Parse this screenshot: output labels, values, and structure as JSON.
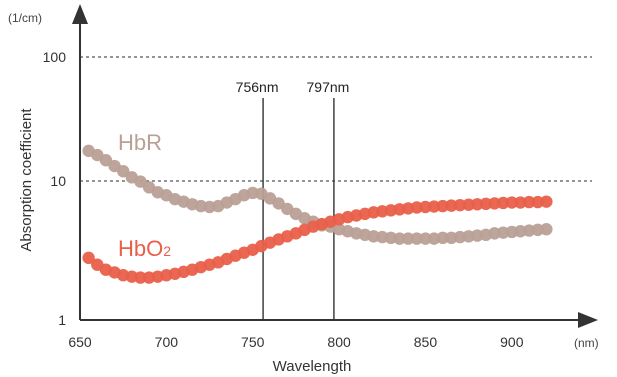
{
  "chart_data": {
    "type": "scatter",
    "scale_y": "log",
    "xlim": [
      650,
      925
    ],
    "ylim": [
      1,
      200
    ],
    "x_ticks": [
      650,
      700,
      750,
      800,
      850,
      900
    ],
    "y_ticks": [
      1,
      10,
      100
    ],
    "y_ticks_labels": [
      "1",
      "10",
      "100"
    ],
    "x_ticks_labels": [
      "650",
      "700",
      "750",
      "800",
      "850",
      "900"
    ],
    "xunit": "(nm)",
    "yunit": "(1/cm)",
    "xlabel": "Wavelength",
    "ylabel": "Absorption coefficient",
    "grid_y_dashed_at": [
      10,
      100
    ],
    "markers": [
      {
        "x": 756,
        "label": "756nm"
      },
      {
        "x": 797,
        "label": "797nm"
      }
    ],
    "series": [
      {
        "name": "HbR",
        "color": "#b9a096",
        "x": [
          655,
          660,
          665,
          670,
          675,
          680,
          685,
          690,
          695,
          700,
          705,
          710,
          715,
          720,
          725,
          730,
          735,
          740,
          745,
          750,
          755,
          760,
          765,
          770,
          775,
          780,
          785,
          790,
          795,
          800,
          805,
          810,
          815,
          820,
          825,
          830,
          835,
          840,
          845,
          850,
          855,
          860,
          865,
          870,
          875,
          880,
          885,
          890,
          895,
          900,
          905,
          910,
          915,
          920
        ],
        "values": [
          17.5,
          16.2,
          14.7,
          13.2,
          12.0,
          10.7,
          9.9,
          9.0,
          8.3,
          7.9,
          7.4,
          7.1,
          6.8,
          6.6,
          6.5,
          6.6,
          7.0,
          7.4,
          7.9,
          8.2,
          8.1,
          7.5,
          6.9,
          6.3,
          5.8,
          5.4,
          5.1,
          4.8,
          4.7,
          4.5,
          4.35,
          4.2,
          4.1,
          4.0,
          3.95,
          3.9,
          3.85,
          3.85,
          3.85,
          3.85,
          3.85,
          3.9,
          3.9,
          3.95,
          4.0,
          4.05,
          4.1,
          4.2,
          4.25,
          4.3,
          4.35,
          4.4,
          4.45,
          4.5
        ]
      },
      {
        "name": "HbO2",
        "color": "#e9604a",
        "x": [
          655,
          660,
          665,
          670,
          675,
          680,
          685,
          690,
          695,
          700,
          705,
          710,
          715,
          720,
          725,
          730,
          735,
          740,
          745,
          750,
          755,
          760,
          765,
          770,
          775,
          780,
          785,
          790,
          795,
          800,
          805,
          810,
          815,
          820,
          825,
          830,
          835,
          840,
          845,
          850,
          855,
          860,
          865,
          870,
          875,
          880,
          885,
          890,
          895,
          900,
          905,
          910,
          915,
          920
        ],
        "values": [
          2.8,
          2.5,
          2.3,
          2.2,
          2.1,
          2.05,
          2.02,
          2.02,
          2.05,
          2.1,
          2.15,
          2.22,
          2.3,
          2.4,
          2.5,
          2.6,
          2.75,
          2.9,
          3.05,
          3.2,
          3.4,
          3.6,
          3.8,
          4.0,
          4.2,
          4.45,
          4.7,
          4.9,
          5.1,
          5.3,
          5.5,
          5.65,
          5.8,
          5.95,
          6.05,
          6.15,
          6.25,
          6.35,
          6.45,
          6.5,
          6.55,
          6.6,
          6.65,
          6.7,
          6.75,
          6.8,
          6.85,
          6.9,
          6.95,
          7.0,
          7.0,
          7.05,
          7.05,
          7.1
        ]
      }
    ],
    "series_labels": [
      {
        "text": "HbR",
        "subscript": "",
        "color": "#b9a096"
      },
      {
        "text": "HbO",
        "subscript": "2",
        "color": "#e9604a"
      }
    ]
  }
}
